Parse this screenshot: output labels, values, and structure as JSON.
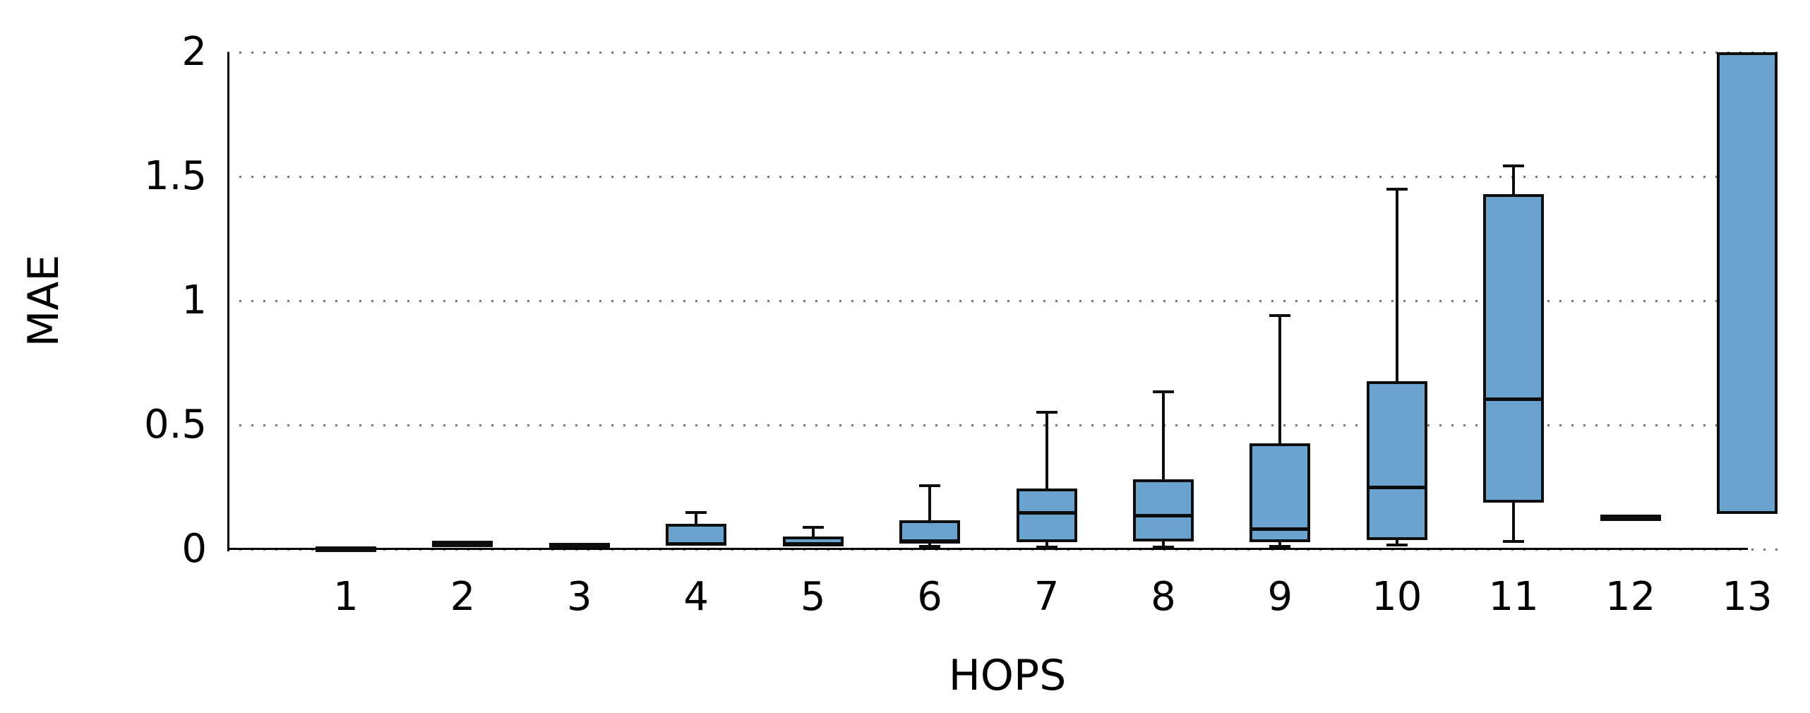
{
  "figure": {
    "background": "#ffffff",
    "box_fill": "#6ba3cf",
    "box_border": "#0d0d0d",
    "grid_color": "#777777",
    "axis_color": "#000000",
    "text_color": "#000000"
  },
  "chart_data": {
    "type": "boxplot",
    "title": "",
    "xlabel": "HOPS",
    "ylabel": "MAE",
    "ylim": [
      0,
      2
    ],
    "grid": "horizontal dotted lines at each y tick",
    "legend": "none",
    "y_ticks": [
      {
        "label": "0",
        "value": 0
      },
      {
        "label": "0.5",
        "value": 0.5
      },
      {
        "label": "1",
        "value": 1
      },
      {
        "label": "1.5",
        "value": 1.5
      },
      {
        "label": "2",
        "value": 2
      }
    ],
    "categories": [
      "1",
      "2",
      "3",
      "4",
      "5",
      "6",
      "7",
      "8",
      "9",
      "10",
      "11",
      "12",
      "13"
    ],
    "series": [
      {
        "hop": "1",
        "whislo": 0.0,
        "q1": 0.001,
        "med": 0.005,
        "q3": 0.01,
        "whishi": 0.014
      },
      {
        "hop": "2",
        "whislo": 0.003,
        "q1": 0.008,
        "med": 0.022,
        "q3": 0.034,
        "whishi": 0.042
      },
      {
        "hop": "3",
        "whislo": 0.0,
        "q1": 0.003,
        "med": 0.013,
        "q3": 0.026,
        "whishi": 0.03
      },
      {
        "hop": "4",
        "whislo": 0.006,
        "q1": 0.014,
        "med": 0.022,
        "q3": 0.102,
        "whishi": 0.148
      },
      {
        "hop": "5",
        "whislo": 0.008,
        "q1": 0.012,
        "med": 0.022,
        "q3": 0.051,
        "whishi": 0.088
      },
      {
        "hop": "6",
        "whislo": 0.011,
        "q1": 0.023,
        "med": 0.034,
        "q3": 0.117,
        "whishi": 0.256
      },
      {
        "hop": "7",
        "whislo": 0.009,
        "q1": 0.028,
        "med": 0.145,
        "q3": 0.244,
        "whishi": 0.551
      },
      {
        "hop": "8",
        "whislo": 0.009,
        "q1": 0.031,
        "med": 0.136,
        "q3": 0.281,
        "whishi": 0.634
      },
      {
        "hop": "9",
        "whislo": 0.011,
        "q1": 0.028,
        "med": 0.08,
        "q3": 0.426,
        "whishi": 0.94
      },
      {
        "hop": "10",
        "whislo": 0.017,
        "q1": 0.037,
        "med": 0.25,
        "q3": 0.676,
        "whishi": 1.449
      },
      {
        "hop": "11",
        "whislo": 0.031,
        "q1": 0.188,
        "med": 0.605,
        "q3": 1.429,
        "whishi": 1.543
      },
      {
        "hop": "12",
        "whislo": 0.125,
        "q1": 0.128,
        "med": 0.131,
        "q3": 0.135,
        "whishi": 0.138
      },
      {
        "hop": "13",
        "whislo": 0.142,
        "q1": 0.142,
        "med": null,
        "q3": 2.0,
        "whishi": 2.0
      }
    ]
  }
}
